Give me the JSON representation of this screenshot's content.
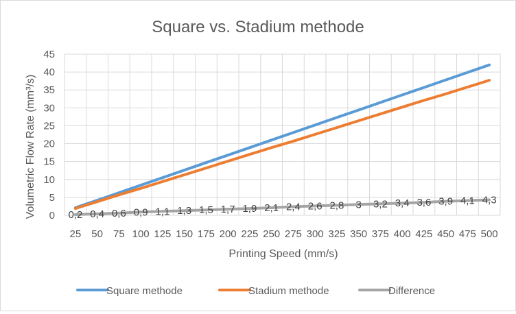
{
  "chart_data": {
    "type": "line",
    "title": "Square vs. Stadium methode",
    "xlabel": "Printing Speed (mm/s)",
    "ylabel": "Volumetric Flow Rate (mm³/s)",
    "categories": [
      "25",
      "50",
      "75",
      "100",
      "125",
      "150",
      "175",
      "200",
      "225",
      "250",
      "275",
      "300",
      "325",
      "350",
      "375",
      "400",
      "425",
      "450",
      "475",
      "500"
    ],
    "ylim": [
      0,
      45
    ],
    "yticks": [
      "0",
      "5",
      "10",
      "15",
      "20",
      "25",
      "30",
      "35",
      "40",
      "45"
    ],
    "grid": "horizontal and vertical",
    "legend_position": "bottom",
    "series": [
      {
        "name": "Square methode",
        "color": "#5b9bd5",
        "values": [
          2.1,
          4.2,
          6.3,
          8.4,
          10.5,
          12.6,
          14.7,
          16.8,
          18.9,
          21.0,
          23.1,
          25.2,
          27.3,
          29.4,
          31.5,
          33.6,
          35.7,
          37.8,
          39.9,
          42.0
        ]
      },
      {
        "name": "Stadium methode",
        "color": "#ed7d31",
        "values": [
          1.9,
          3.8,
          5.7,
          7.5,
          9.4,
          11.3,
          13.2,
          15.1,
          17.0,
          18.9,
          20.7,
          22.6,
          24.5,
          26.4,
          28.3,
          30.2,
          32.1,
          33.9,
          35.8,
          37.7
        ]
      },
      {
        "name": "Difference",
        "color": "#a5a5a5",
        "values": [
          0.2,
          0.4,
          0.6,
          0.9,
          1.1,
          1.3,
          1.5,
          1.7,
          1.9,
          2.1,
          2.4,
          2.6,
          2.8,
          3.0,
          3.2,
          3.4,
          3.6,
          3.9,
          4.1,
          4.3
        ],
        "data_labels": [
          "0,2",
          "0,4",
          "0,6",
          "0,9",
          "1,1",
          "1,3",
          "1,5",
          "1,7",
          "1,9",
          "2,1",
          "2,4",
          "2,6",
          "2,8",
          "3",
          "3,2",
          "3,4",
          "3,6",
          "3,9",
          "4,1",
          "4,3"
        ]
      }
    ]
  }
}
